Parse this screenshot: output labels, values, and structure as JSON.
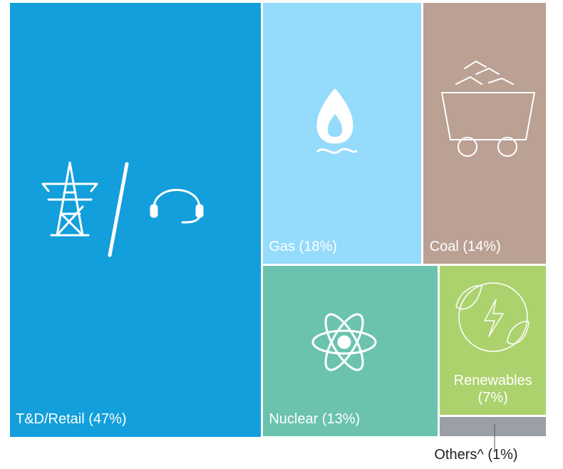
{
  "chart_data": {
    "type": "treemap",
    "values": [
      47,
      18,
      14,
      13,
      7,
      1
    ],
    "value_labels": [
      "T&D/Retail (47%)",
      "Gas (18%)",
      "Coal (14%)",
      "Nuclear (13%)",
      "Renewables (7%)",
      "Others^ (1%)"
    ],
    "colors": [
      "#129fdb",
      "#95dbfb",
      "#bba094",
      "#6bc3af",
      "#acd26e",
      "#9aa0a6"
    ]
  }
}
